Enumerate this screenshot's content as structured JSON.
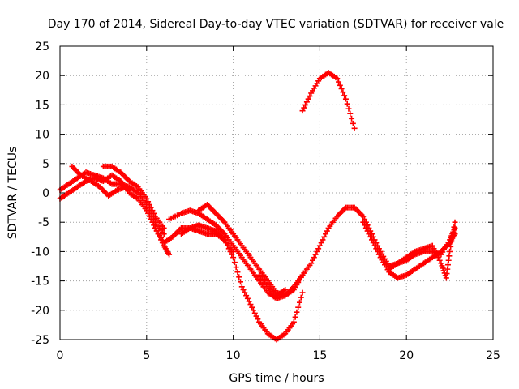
{
  "chart_data": {
    "type": "scatter",
    "title": "Day 170 of 2014, Sidereal Day-to-day VTEC variation (SDTVAR) for receiver vale",
    "xlabel": "GPS time / hours",
    "ylabel": "SDTVAR / TECUs",
    "xlim": [
      0,
      25
    ],
    "ylim": [
      -25,
      25
    ],
    "xticks": [
      0,
      5,
      10,
      15,
      20,
      25
    ],
    "yticks": [
      -25,
      -20,
      -15,
      -10,
      -5,
      0,
      5,
      10,
      15,
      20,
      25
    ],
    "grid": true,
    "marker": "+",
    "series_color": "#ff0000",
    "series": [
      {
        "name": "trace-1",
        "points": [
          [
            0,
            -1
          ],
          [
            0.5,
            0
          ],
          [
            1,
            1
          ],
          [
            1.5,
            2
          ],
          [
            2,
            2.5
          ],
          [
            2.5,
            2
          ],
          [
            3,
            3
          ],
          [
            3.5,
            2
          ],
          [
            4,
            0
          ],
          [
            4.5,
            -1
          ],
          [
            5,
            -3
          ],
          [
            5.5,
            -6
          ],
          [
            6,
            -9
          ],
          [
            6.3,
            -10.5
          ]
        ]
      },
      {
        "name": "trace-2",
        "points": [
          [
            0,
            0.5
          ],
          [
            0.5,
            1.5
          ],
          [
            1,
            2.5
          ],
          [
            1.5,
            3.5
          ],
          [
            2,
            3
          ],
          [
            2.5,
            2.5
          ],
          [
            3,
            1.5
          ],
          [
            3.5,
            1.5
          ],
          [
            4,
            1
          ],
          [
            4.5,
            0
          ],
          [
            5,
            -2
          ],
          [
            5.5,
            -5
          ],
          [
            6,
            -7
          ]
        ]
      },
      {
        "name": "trace-3",
        "points": [
          [
            0.7,
            4.5
          ],
          [
            1.2,
            3
          ],
          [
            1.8,
            2
          ],
          [
            2.3,
            1
          ],
          [
            2.8,
            -0.5
          ],
          [
            3.3,
            0.5
          ],
          [
            3.8,
            1
          ]
        ]
      },
      {
        "name": "trace-4",
        "points": [
          [
            2.5,
            4.5
          ],
          [
            3,
            4.5
          ],
          [
            3.5,
            3.5
          ],
          [
            4,
            2
          ],
          [
            4.5,
            1
          ],
          [
            5,
            -1
          ],
          [
            5.5,
            -4
          ],
          [
            6,
            -6
          ]
        ]
      },
      {
        "name": "trace-5",
        "points": [
          [
            5.5,
            -6
          ],
          [
            6,
            -8.5
          ],
          [
            6.5,
            -7.5
          ],
          [
            7,
            -6
          ],
          [
            7.5,
            -6
          ],
          [
            8,
            -6.5
          ],
          [
            8.5,
            -7
          ],
          [
            9,
            -7
          ],
          [
            9.5,
            -8
          ],
          [
            10,
            -10
          ]
        ]
      },
      {
        "name": "trace-6",
        "points": [
          [
            6.3,
            -4.5
          ],
          [
            7,
            -3.5
          ],
          [
            7.5,
            -3
          ],
          [
            8,
            -3.5
          ],
          [
            8.5,
            -4.5
          ],
          [
            9,
            -5.5
          ],
          [
            9.5,
            -7
          ],
          [
            10,
            -9
          ],
          [
            10.5,
            -11
          ],
          [
            11,
            -13
          ],
          [
            11.5,
            -15
          ],
          [
            12,
            -17
          ],
          [
            12.5,
            -18
          ],
          [
            13,
            -17.5
          ],
          [
            13.5,
            -16
          ],
          [
            14,
            -14
          ]
        ]
      },
      {
        "name": "trace-7",
        "points": [
          [
            7,
            -7
          ],
          [
            7.5,
            -6
          ],
          [
            8,
            -5.5
          ],
          [
            8.5,
            -6
          ],
          [
            9,
            -6.5
          ],
          [
            9.5,
            -8
          ],
          [
            10,
            -11
          ],
          [
            10.5,
            -16
          ],
          [
            11,
            -19
          ],
          [
            11.5,
            -22
          ],
          [
            12,
            -24
          ],
          [
            12.5,
            -25
          ],
          [
            13,
            -24
          ],
          [
            13.5,
            -22
          ],
          [
            14,
            -17
          ]
        ]
      },
      {
        "name": "trace-8",
        "points": [
          [
            8,
            -3
          ],
          [
            8.5,
            -2
          ],
          [
            9,
            -3.5
          ],
          [
            9.5,
            -5
          ],
          [
            10,
            -7
          ],
          [
            10.5,
            -9
          ],
          [
            11,
            -11
          ],
          [
            11.5,
            -13
          ],
          [
            12,
            -15
          ],
          [
            12.5,
            -17
          ],
          [
            13,
            -17.5
          ],
          [
            13.5,
            -16.5
          ],
          [
            14,
            -14
          ],
          [
            14.5,
            -12
          ],
          [
            15,
            -9
          ],
          [
            15.5,
            -6
          ],
          [
            16,
            -4
          ],
          [
            16.5,
            -2.5
          ],
          [
            17,
            -2.5
          ],
          [
            17.5,
            -4
          ],
          [
            18,
            -7
          ],
          [
            18.5,
            -10
          ],
          [
            19,
            -12.5
          ],
          [
            19.5,
            -12
          ],
          [
            20,
            -11.5
          ],
          [
            20.5,
            -10.5
          ],
          [
            21,
            -10
          ],
          [
            21.5,
            -10
          ],
          [
            22,
            -10.5
          ],
          [
            22.5,
            -8
          ],
          [
            22.8,
            -6
          ]
        ]
      },
      {
        "name": "trace-9",
        "points": [
          [
            11.5,
            -14
          ],
          [
            12,
            -16
          ],
          [
            12.5,
            -17.5
          ],
          [
            13,
            -16.5
          ]
        ]
      },
      {
        "name": "trace-10",
        "points": [
          [
            14,
            14
          ],
          [
            14.5,
            17
          ],
          [
            15,
            19.5
          ],
          [
            15.5,
            20.5
          ],
          [
            16,
            19.5
          ],
          [
            16.5,
            16
          ],
          [
            17,
            11
          ]
        ]
      },
      {
        "name": "trace-11",
        "points": [
          [
            17.5,
            -5
          ],
          [
            18,
            -8
          ],
          [
            18.5,
            -11
          ],
          [
            19,
            -13.5
          ],
          [
            19.5,
            -14.5
          ],
          [
            20,
            -14
          ],
          [
            20.5,
            -13
          ],
          [
            21,
            -12
          ],
          [
            21.5,
            -11
          ],
          [
            22,
            -10
          ],
          [
            22.5,
            -8.5
          ],
          [
            22.8,
            -7
          ]
        ]
      },
      {
        "name": "trace-12",
        "points": [
          [
            19,
            -13
          ],
          [
            19.5,
            -12
          ],
          [
            20,
            -11
          ],
          [
            20.5,
            -10
          ],
          [
            21,
            -9.5
          ],
          [
            21.5,
            -9
          ],
          [
            22,
            -12
          ],
          [
            22.3,
            -14.5
          ],
          [
            22.5,
            -10
          ],
          [
            22.8,
            -5
          ]
        ]
      }
    ]
  }
}
